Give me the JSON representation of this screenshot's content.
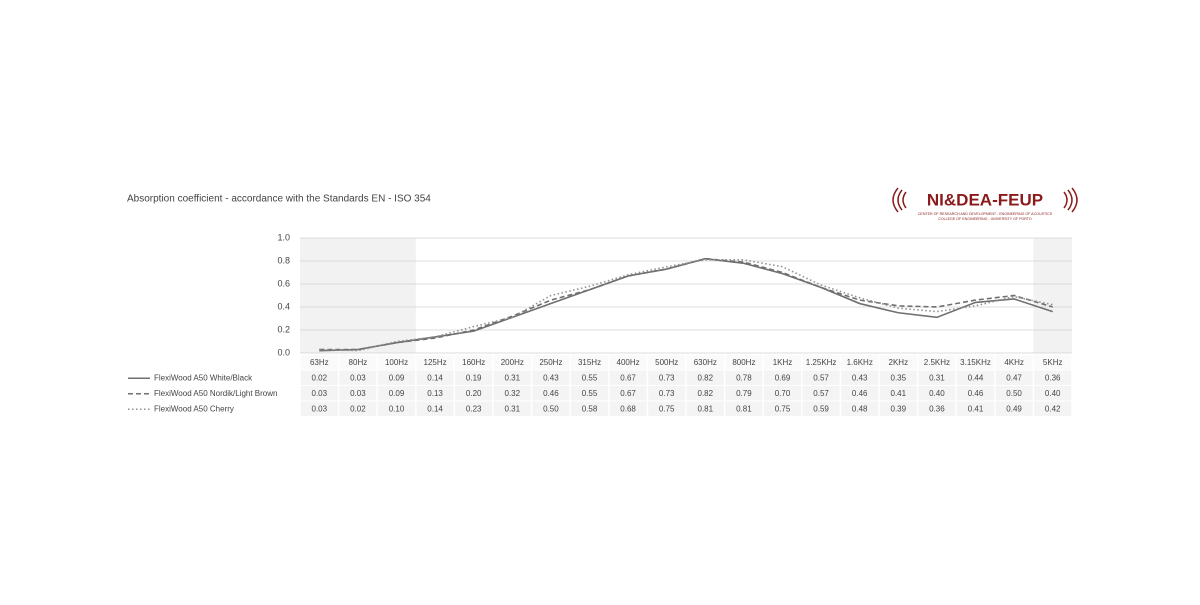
{
  "chart_data": {
    "type": "line",
    "title": "Absorption coefficient  -  accordance with the Standards EN - ISO 354",
    "categories": [
      "63Hz",
      "80Hz",
      "100Hz",
      "125Hz",
      "160Hz",
      "200Hz",
      "250Hz",
      "315Hz",
      "400Hz",
      "500Hz",
      "630Hz",
      "800Hz",
      "1KHz",
      "1.25KHz",
      "1.6KHz",
      "2KHz",
      "2.5KHz",
      "3.15KHz",
      "4KHz",
      "5KHz"
    ],
    "series": [
      {
        "name": "FlexiWood A50 White/Black",
        "color": "#707070",
        "dash": "solid",
        "values": [
          0.02,
          0.03,
          0.09,
          0.14,
          0.19,
          0.31,
          0.43,
          0.55,
          0.67,
          0.73,
          0.82,
          0.78,
          0.69,
          0.57,
          0.43,
          0.35,
          0.31,
          0.44,
          0.47,
          0.36
        ],
        "value_labels": [
          "0.02",
          "0.03",
          "0.09",
          "0.14",
          "0.19",
          "0.31",
          "0.43",
          "0.55",
          "0.67",
          "0.73",
          "0.82",
          "0.78",
          "0.69",
          "0.57",
          "0.43",
          "0.35",
          "0.31",
          "0.44",
          "0.47",
          "0.36"
        ]
      },
      {
        "name": "FlexiWood A50 Nordik/Light Brown",
        "color": "#707070",
        "dash": "dashed",
        "values": [
          0.03,
          0.03,
          0.09,
          0.13,
          0.2,
          0.32,
          0.46,
          0.55,
          0.67,
          0.73,
          0.82,
          0.79,
          0.7,
          0.57,
          0.46,
          0.41,
          0.4,
          0.46,
          0.5,
          0.4
        ],
        "value_labels": [
          "0.03",
          "0.03",
          "0.09",
          "0.13",
          "0.20",
          "0.32",
          "0.46",
          "0.55",
          "0.67",
          "0.73",
          "0.82",
          "0.79",
          "0.70",
          "0.57",
          "0.46",
          "0.41",
          "0.40",
          "0.46",
          "0.50",
          "0.40"
        ]
      },
      {
        "name": "FlexiWood A50 Cherry",
        "color": "#909090",
        "dash": "dotted",
        "values": [
          0.03,
          0.02,
          0.1,
          0.14,
          0.23,
          0.31,
          0.5,
          0.58,
          0.68,
          0.75,
          0.81,
          0.81,
          0.75,
          0.59,
          0.48,
          0.39,
          0.36,
          0.41,
          0.49,
          0.42
        ],
        "value_labels": [
          "0.03",
          "0.02",
          "0.10",
          "0.14",
          "0.23",
          "0.31",
          "0.50",
          "0.58",
          "0.68",
          "0.75",
          "0.81",
          "0.81",
          "0.75",
          "0.59",
          "0.48",
          "0.39",
          "0.36",
          "0.41",
          "0.49",
          "0.42"
        ]
      }
    ],
    "ylim": [
      0,
      1
    ],
    "yticks": [
      {
        "value": 0,
        "label": "0.0"
      },
      0.2,
      0.4,
      0.6,
      0.8,
      {
        "value": 1,
        "label": "1.0"
      }
    ],
    "grid": true
  },
  "logo": {
    "name": "NI&DEA-FEUP",
    "lines": [
      "CENTER OF RESEARCH AND DEVELOPMENT - ENGINEERING OF ACOUSTICS",
      "COLLEGE OF ENGINEERING - UNIVERSITY OF PORTO"
    ]
  }
}
